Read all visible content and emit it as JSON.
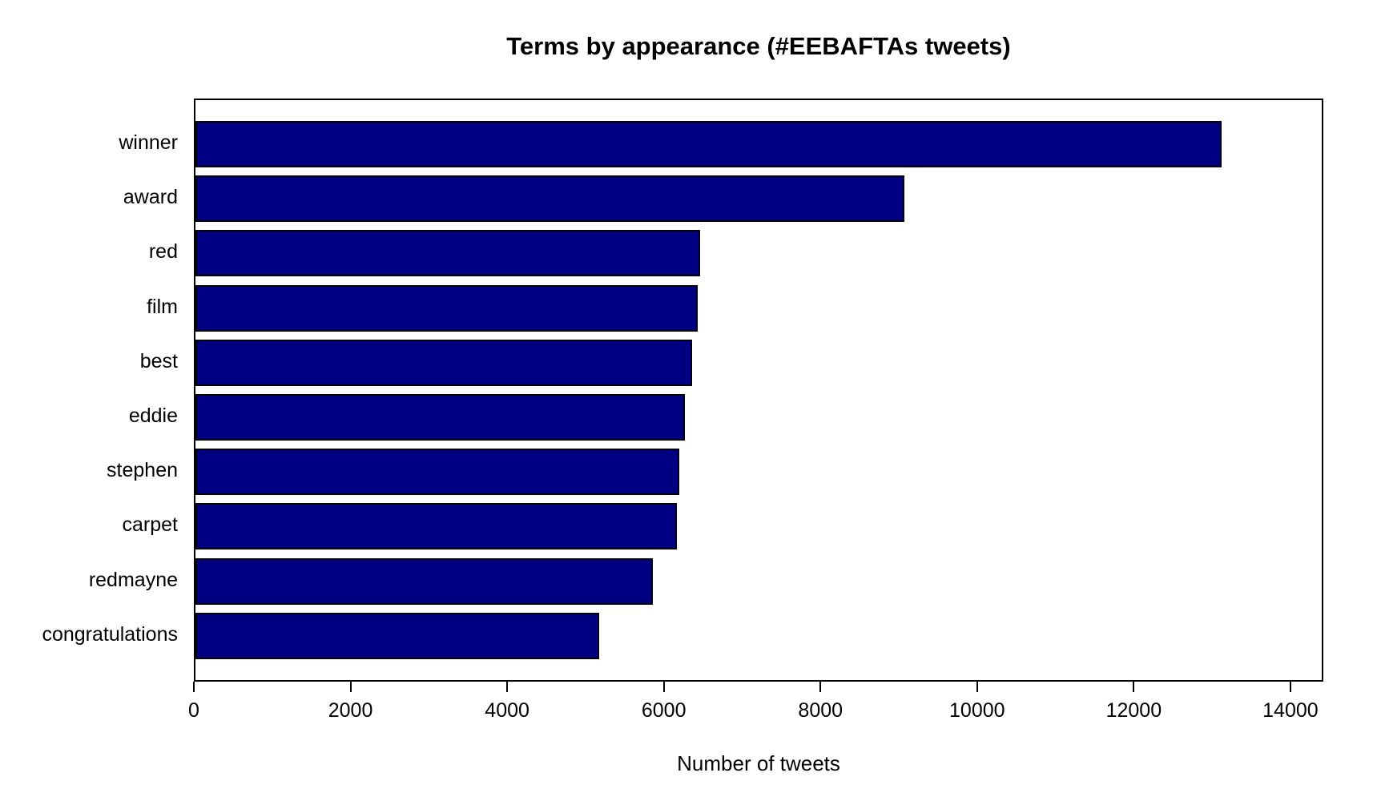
{
  "chart_data": {
    "type": "bar",
    "orientation": "horizontal",
    "title": "Terms by appearance (#EEBAFTAs tweets)",
    "xlabel": "Number of tweets",
    "ylabel": "",
    "categories": [
      "winner",
      "award",
      "red",
      "film",
      "best",
      "eddie",
      "stephen",
      "carpet",
      "redmayne",
      "congratulations"
    ],
    "values": [
      13100,
      9050,
      6440,
      6410,
      6340,
      6250,
      6180,
      6150,
      5840,
      5150
    ],
    "xticks": [
      0,
      2000,
      4000,
      6000,
      8000,
      10000,
      12000,
      14000
    ],
    "xlim": [
      0,
      14420
    ],
    "grid": false,
    "legend": false,
    "colors": {
      "bar_fill": "#000082",
      "bar_border": "#000000",
      "axis": "#000000",
      "background": "#ffffff"
    }
  }
}
